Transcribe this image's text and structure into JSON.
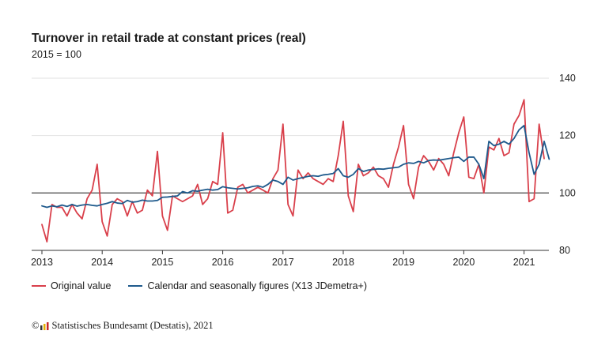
{
  "header": {
    "title": "Turnover in retail trade at constant prices (real)",
    "subtitle": "2015 = 100"
  },
  "footer": {
    "copyright_symbol": "©",
    "source": "Statistisches Bundesamt (Destatis), 2021"
  },
  "chart_data": {
    "type": "line",
    "title": "Turnover in retail trade at constant prices (real)",
    "subtitle": "2015 = 100",
    "xlabel": "",
    "ylabel": "",
    "x_tick_labels": [
      "2013",
      "2014",
      "2015",
      "2016",
      "2017",
      "2018",
      "2019",
      "2020",
      "2021"
    ],
    "y_ticks": [
      80,
      100,
      120,
      140
    ],
    "ylim": [
      80,
      140
    ],
    "reference_line": 100,
    "grid": true,
    "legend_position": "bottom",
    "series": [
      {
        "name": "Original value",
        "color": "#d9404b",
        "start": "2013-01",
        "frequency": "monthly",
        "values": [
          89,
          83,
          96,
          95,
          95,
          92,
          96,
          93,
          91,
          98,
          101,
          110,
          90,
          85,
          96,
          98,
          97,
          92,
          97,
          93,
          94,
          101,
          99,
          114.5,
          92,
          87,
          99,
          98,
          97,
          98,
          99,
          103,
          96,
          98,
          104,
          103,
          121,
          93,
          94,
          102,
          103,
          100,
          101,
          102,
          101,
          100,
          105,
          108,
          124,
          96,
          92,
          108,
          105,
          107,
          105,
          104,
          103,
          105,
          104,
          113,
          125,
          99,
          93.5,
          110,
          106,
          107,
          109,
          106,
          105,
          102,
          110,
          116,
          123.5,
          103,
          98,
          109,
          113,
          111,
          108,
          112,
          110,
          106,
          114,
          121,
          126.5,
          105.5,
          105,
          110,
          100,
          116,
          115,
          119,
          113,
          114,
          124,
          127,
          132.5,
          97,
          98,
          124,
          112
        ]
      },
      {
        "name": "Calendar and seasonally figures (X13 JDemetra+)",
        "color": "#1f5a8c",
        "start": "2013-01",
        "frequency": "monthly",
        "values": [
          95.5,
          95,
          95.5,
          95.2,
          95.8,
          95.3,
          96,
          95.4,
          95.8,
          96,
          95.7,
          95.5,
          96,
          96.4,
          97,
          96.5,
          96.3,
          97.4,
          96.8,
          97,
          97.5,
          97.2,
          97.2,
          97.4,
          98.5,
          98.6,
          98.8,
          99,
          100.5,
          100,
          100.8,
          100.6,
          101,
          101.3,
          101,
          101.2,
          102.2,
          101.8,
          101.6,
          101.4,
          101.6,
          101.8,
          102.3,
          102.5,
          102,
          103,
          104.5,
          104,
          103,
          105.5,
          104.5,
          105,
          105.4,
          105.8,
          106,
          105.8,
          106.3,
          106.5,
          106.8,
          108.5,
          106,
          105.5,
          106.5,
          108.5,
          107.5,
          108,
          108.2,
          108.4,
          108.3,
          108.6,
          108.8,
          109,
          110,
          110.5,
          110.3,
          111,
          110.5,
          111.3,
          111.5,
          111.4,
          111.7,
          112,
          112.3,
          112.5,
          111,
          112.5,
          112.5,
          110,
          105,
          118,
          116.5,
          117,
          118,
          117,
          119,
          122,
          123.5,
          114,
          106.5,
          110,
          118,
          111.8
        ]
      }
    ]
  }
}
